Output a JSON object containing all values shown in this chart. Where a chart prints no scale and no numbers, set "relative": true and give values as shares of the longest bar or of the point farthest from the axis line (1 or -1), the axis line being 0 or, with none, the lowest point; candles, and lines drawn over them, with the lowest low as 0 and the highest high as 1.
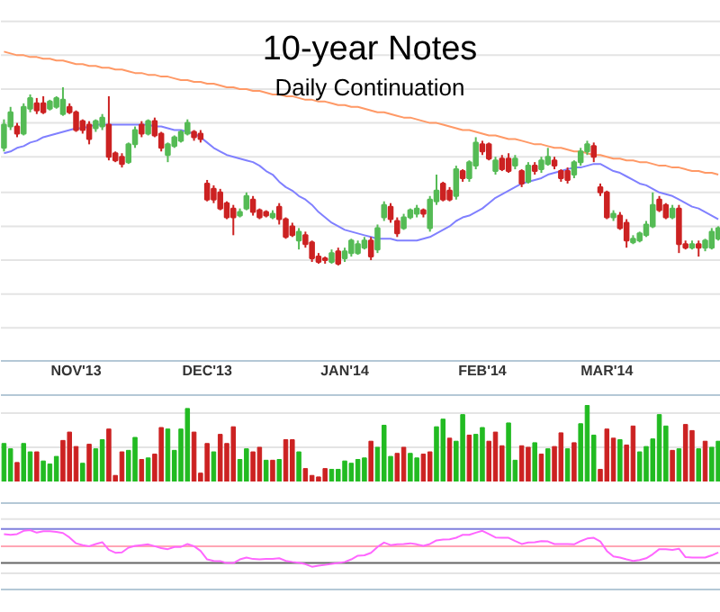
{
  "chart_data": [
    {
      "type": "candlestick",
      "title": "10-year Notes",
      "subtitle": "Daily Continuation",
      "relative": true,
      "categories": [
        null,
        null,
        null,
        null,
        null,
        null,
        null,
        null,
        null,
        null,
        null,
        "NOV'13",
        null,
        null,
        null,
        null,
        null,
        null,
        null,
        null,
        null,
        null,
        null,
        null,
        null,
        null,
        null,
        null,
        null,
        null,
        null,
        "DEC'13",
        null,
        null,
        null,
        null,
        null,
        null,
        null,
        null,
        null,
        null,
        null,
        null,
        null,
        null,
        null,
        null,
        null,
        null,
        null,
        null,
        "JAN'14",
        null,
        null,
        null,
        null,
        null,
        null,
        null,
        null,
        null,
        null,
        null,
        null,
        null,
        null,
        null,
        null,
        null,
        null,
        null,
        null,
        "FEB'14",
        null,
        null,
        null,
        null,
        null,
        null,
        null,
        null,
        null,
        null,
        null,
        null,
        null,
        null,
        null,
        null,
        null,
        null,
        "MAR'14",
        null,
        null,
        null,
        null,
        null,
        null,
        null,
        null,
        null,
        null,
        null,
        null,
        null,
        null,
        null,
        null,
        null
      ],
      "ohlc": [
        [
          0.66,
          0.82,
          0.64,
          0.79
        ],
        [
          0.78,
          0.89,
          0.76,
          0.86
        ],
        [
          0.78,
          0.8,
          0.72,
          0.74
        ],
        [
          0.74,
          0.91,
          0.73,
          0.89
        ],
        [
          0.88,
          0.96,
          0.86,
          0.94
        ],
        [
          0.91,
          0.94,
          0.85,
          0.87
        ],
        [
          0.91,
          0.95,
          0.85,
          0.86
        ],
        [
          0.88,
          0.93,
          0.87,
          0.92
        ],
        [
          0.89,
          0.95,
          0.88,
          0.94
        ],
        [
          0.85,
          1.0,
          0.84,
          0.93
        ],
        [
          0.89,
          0.91,
          0.85,
          0.86
        ],
        [
          0.86,
          0.87,
          0.75,
          0.76
        ],
        [
          0.81,
          0.82,
          0.74,
          0.76
        ],
        [
          0.79,
          0.81,
          0.68,
          0.71
        ],
        [
          0.77,
          0.82,
          0.75,
          0.81
        ],
        [
          0.78,
          0.85,
          0.76,
          0.83
        ],
        [
          0.79,
          0.95,
          0.59,
          0.61
        ],
        [
          0.63,
          0.64,
          0.58,
          0.59
        ],
        [
          0.61,
          0.63,
          0.55,
          0.57
        ],
        [
          0.58,
          0.69,
          0.57,
          0.68
        ],
        [
          0.68,
          0.78,
          0.66,
          0.76
        ],
        [
          0.79,
          0.81,
          0.72,
          0.74
        ],
        [
          0.74,
          0.82,
          0.73,
          0.81
        ],
        [
          0.81,
          0.83,
          0.72,
          0.73
        ],
        [
          0.74,
          0.75,
          0.64,
          0.66
        ],
        [
          0.62,
          0.69,
          0.58,
          0.68
        ],
        [
          0.67,
          0.73,
          0.66,
          0.72
        ],
        [
          0.7,
          0.76,
          0.69,
          0.75
        ],
        [
          0.74,
          0.82,
          0.73,
          0.8
        ],
        [
          0.75,
          0.76,
          0.7,
          0.72
        ],
        [
          0.74,
          0.76,
          0.69,
          0.71
        ],
        [
          0.46,
          0.48,
          0.36,
          0.37
        ],
        [
          0.43,
          0.45,
          0.35,
          0.37
        ],
        [
          0.41,
          0.43,
          0.31,
          0.32
        ],
        [
          0.35,
          0.36,
          0.26,
          0.27
        ],
        [
          0.32,
          0.34,
          0.17,
          0.27
        ],
        [
          0.28,
          0.32,
          0.27,
          0.3
        ],
        [
          0.32,
          0.41,
          0.31,
          0.39
        ],
        [
          0.37,
          0.39,
          0.28,
          0.3
        ],
        [
          0.31,
          0.32,
          0.26,
          0.27
        ],
        [
          0.3,
          0.31,
          0.27,
          0.28
        ],
        [
          0.27,
          0.31,
          0.26,
          0.29
        ],
        [
          0.33,
          0.35,
          0.23,
          0.26
        ],
        [
          0.26,
          0.27,
          0.15,
          0.16
        ],
        [
          0.22,
          0.24,
          0.16,
          0.17
        ],
        [
          0.14,
          0.21,
          0.09,
          0.19
        ],
        [
          0.17,
          0.19,
          0.1,
          0.12
        ],
        [
          0.13,
          0.14,
          0.02,
          0.04
        ],
        [
          0.05,
          0.07,
          0.01,
          0.02
        ],
        [
          0.04,
          0.05,
          0.01,
          0.03
        ],
        [
          0.02,
          0.09,
          0.01,
          0.07
        ],
        [
          0.08,
          0.1,
          0.0,
          0.01
        ],
        [
          0.04,
          0.1,
          0.02,
          0.08
        ],
        [
          0.07,
          0.15,
          0.05,
          0.14
        ],
        [
          0.07,
          0.14,
          0.06,
          0.12
        ],
        [
          0.1,
          0.16,
          0.09,
          0.14
        ],
        [
          0.14,
          0.16,
          0.03,
          0.05
        ],
        [
          0.09,
          0.23,
          0.07,
          0.21
        ],
        [
          0.27,
          0.36,
          0.25,
          0.34
        ],
        [
          0.33,
          0.35,
          0.24,
          0.26
        ],
        [
          0.25,
          0.27,
          0.16,
          0.18
        ],
        [
          0.21,
          0.29,
          0.2,
          0.27
        ],
        [
          0.27,
          0.32,
          0.26,
          0.31
        ],
        [
          0.29,
          0.34,
          0.27,
          0.32
        ],
        [
          0.31,
          0.32,
          0.27,
          0.29
        ],
        [
          0.21,
          0.39,
          0.19,
          0.37
        ],
        [
          0.36,
          0.51,
          0.34,
          0.42
        ],
        [
          0.46,
          0.47,
          0.36,
          0.37
        ],
        [
          0.42,
          0.44,
          0.36,
          0.37
        ],
        [
          0.39,
          0.56,
          0.37,
          0.54
        ],
        [
          0.53,
          0.54,
          0.47,
          0.49
        ],
        [
          0.49,
          0.59,
          0.47,
          0.58
        ],
        [
          0.56,
          0.72,
          0.54,
          0.69
        ],
        [
          0.68,
          0.7,
          0.62,
          0.64
        ],
        [
          0.68,
          0.69,
          0.59,
          0.6
        ],
        [
          0.53,
          0.61,
          0.51,
          0.59
        ],
        [
          0.6,
          0.62,
          0.53,
          0.54
        ],
        [
          0.6,
          0.63,
          0.52,
          0.53
        ],
        [
          0.56,
          0.62,
          0.54,
          0.6
        ],
        [
          0.53,
          0.54,
          0.44,
          0.46
        ],
        [
          0.47,
          0.58,
          0.46,
          0.56
        ],
        [
          0.56,
          0.58,
          0.51,
          0.53
        ],
        [
          0.54,
          0.61,
          0.52,
          0.59
        ],
        [
          0.57,
          0.66,
          0.56,
          0.61
        ],
        [
          0.59,
          0.61,
          0.54,
          0.56
        ],
        [
          0.53,
          0.54,
          0.47,
          0.49
        ],
        [
          0.53,
          0.55,
          0.46,
          0.48
        ],
        [
          0.51,
          0.59,
          0.49,
          0.58
        ],
        [
          0.58,
          0.66,
          0.56,
          0.64
        ],
        [
          0.64,
          0.7,
          0.62,
          0.68
        ],
        [
          0.67,
          0.69,
          0.58,
          0.61
        ],
        [
          0.44,
          0.46,
          0.39,
          0.41
        ],
        [
          0.41,
          0.42,
          0.26,
          0.27
        ],
        [
          0.27,
          0.31,
          0.25,
          0.29
        ],
        [
          0.28,
          0.3,
          0.2,
          0.21
        ],
        [
          0.24,
          0.26,
          0.1,
          0.14
        ],
        [
          0.13,
          0.17,
          0.12,
          0.15
        ],
        [
          0.14,
          0.19,
          0.13,
          0.18
        ],
        [
          0.17,
          0.25,
          0.16,
          0.23
        ],
        [
          0.22,
          0.41,
          0.21,
          0.34
        ],
        [
          0.37,
          0.39,
          0.3,
          0.31
        ],
        [
          0.34,
          0.35,
          0.26,
          0.27
        ],
        [
          0.27,
          0.34,
          0.26,
          0.32
        ],
        [
          0.32,
          0.34,
          0.07,
          0.12
        ],
        [
          0.12,
          0.14,
          0.09,
          0.1
        ],
        [
          0.1,
          0.14,
          0.09,
          0.12
        ],
        [
          0.12,
          0.14,
          0.05,
          0.1
        ],
        [
          0.1,
          0.15,
          0.08,
          0.14
        ],
        [
          0.1,
          0.21,
          0.09,
          0.19
        ],
        [
          0.15,
          0.22,
          0.14,
          0.21
        ]
      ],
      "colors": [
        "#55bb55",
        "#55bb55",
        "#cc2222",
        "#55bb55",
        "#55bb55",
        "#cc2222",
        "#cc2222",
        "#55bb55",
        "#55bb55",
        "#55bb55",
        "#cc2222",
        "#cc2222",
        "#cc2222",
        "#cc2222",
        "#55bb55",
        "#55bb55",
        "#cc2222",
        "#cc2222",
        "#cc2222",
        "#55bb55",
        "#55bb55",
        "#cc2222",
        "#55bb55",
        "#cc2222",
        "#cc2222",
        "#55bb55",
        "#55bb55",
        "#55bb55",
        "#55bb55",
        "#cc2222",
        "#cc2222",
        "#cc2222",
        "#cc2222",
        "#cc2222",
        "#cc2222",
        "#cc2222",
        "#55bb55",
        "#55bb55",
        "#cc2222",
        "#cc2222",
        "#cc2222",
        "#55bb55",
        "#cc2222",
        "#cc2222",
        "#cc2222",
        "#55bb55",
        "#cc2222",
        "#cc2222",
        "#cc2222",
        "#cc2222",
        "#55bb55",
        "#cc2222",
        "#55bb55",
        "#55bb55",
        "#55bb55",
        "#55bb55",
        "#cc2222",
        "#55bb55",
        "#55bb55",
        "#cc2222",
        "#cc2222",
        "#55bb55",
        "#55bb55",
        "#55bb55",
        "#cc2222",
        "#55bb55",
        "#55bb55",
        "#cc2222",
        "#cc2222",
        "#55bb55",
        "#cc2222",
        "#55bb55",
        "#55bb55",
        "#cc2222",
        "#cc2222",
        "#55bb55",
        "#cc2222",
        "#cc2222",
        "#55bb55",
        "#cc2222",
        "#55bb55",
        "#cc2222",
        "#55bb55",
        "#55bb55",
        "#cc2222",
        "#cc2222",
        "#cc2222",
        "#55bb55",
        "#55bb55",
        "#55bb55",
        "#cc2222",
        "#cc2222",
        "#cc2222",
        "#55bb55",
        "#cc2222",
        "#cc2222",
        "#55bb55",
        "#55bb55",
        "#55bb55",
        "#55bb55",
        "#cc2222",
        "#cc2222",
        "#55bb55",
        "#cc2222",
        "#cc2222",
        "#55bb55",
        "#cc2222",
        "#55bb55",
        "#55bb55",
        "#55bb55"
      ],
      "series": [
        {
          "type": "line",
          "color": "#ff9966",
          "values": [
            1.2,
            1.19,
            1.18,
            1.18,
            1.17,
            1.17,
            1.16,
            1.16,
            1.15,
            1.15,
            1.14,
            1.13,
            1.13,
            1.12,
            1.12,
            1.11,
            1.11,
            1.1,
            1.1,
            1.09,
            1.08,
            1.08,
            1.07,
            1.07,
            1.06,
            1.06,
            1.05,
            1.04,
            1.04,
            1.03,
            1.03,
            1.02,
            1.02,
            1.01,
            1.0,
            1.0,
            0.99,
            0.99,
            0.98,
            0.98,
            0.97,
            0.96,
            0.96,
            0.95,
            0.95,
            0.94,
            0.93,
            0.93,
            0.92,
            0.92,
            0.91,
            0.9,
            0.9,
            0.89,
            0.89,
            0.88,
            0.87,
            0.86,
            0.86,
            0.85,
            0.84,
            0.83,
            0.83,
            0.82,
            0.81,
            0.8,
            0.8,
            0.79,
            0.78,
            0.77,
            0.76,
            0.76,
            0.75,
            0.74,
            0.73,
            0.73,
            0.72,
            0.71,
            0.71,
            0.7,
            0.69,
            0.68,
            0.68,
            0.67,
            0.66,
            0.66,
            0.65,
            0.64,
            0.64,
            0.63,
            0.62,
            0.62,
            0.61,
            0.6,
            0.6,
            0.59,
            0.59,
            0.58,
            0.58,
            0.57,
            0.56,
            0.56,
            0.55,
            0.55,
            0.54,
            0.53,
            0.53,
            0.52,
            0.52,
            0.51
          ]
        },
        {
          "type": "line",
          "color": "#8080ff",
          "values": [
            0.63,
            0.64,
            0.66,
            0.67,
            0.69,
            0.7,
            0.72,
            0.73,
            0.74,
            0.75,
            0.76,
            0.77,
            0.77,
            0.78,
            0.79,
            0.79,
            0.79,
            0.79,
            0.79,
            0.79,
            0.79,
            0.79,
            0.79,
            0.78,
            0.78,
            0.77,
            0.76,
            0.76,
            0.75,
            0.74,
            0.72,
            0.69,
            0.66,
            0.64,
            0.62,
            0.61,
            0.6,
            0.59,
            0.58,
            0.56,
            0.53,
            0.51,
            0.47,
            0.44,
            0.42,
            0.39,
            0.37,
            0.34,
            0.3,
            0.27,
            0.24,
            0.22,
            0.2,
            0.19,
            0.18,
            0.17,
            0.16,
            0.15,
            0.15,
            0.15,
            0.14,
            0.14,
            0.14,
            0.14,
            0.15,
            0.16,
            0.18,
            0.2,
            0.22,
            0.25,
            0.27,
            0.28,
            0.3,
            0.32,
            0.35,
            0.38,
            0.4,
            0.42,
            0.44,
            0.46,
            0.47,
            0.48,
            0.49,
            0.51,
            0.52,
            0.53,
            0.54,
            0.55,
            0.55,
            0.56,
            0.57,
            0.57,
            0.55,
            0.53,
            0.52,
            0.5,
            0.48,
            0.46,
            0.45,
            0.43,
            0.41,
            0.4,
            0.39,
            0.37,
            0.35,
            0.33,
            0.32,
            0.3,
            0.28,
            0.26
          ]
        }
      ],
      "ref_lines": [
        {
          "axis": "y",
          "value": -0.35,
          "color": "#e4e4e4"
        },
        {
          "axis": "y",
          "value": -0.16,
          "color": "#e4e4e4"
        },
        {
          "axis": "y",
          "value": 0.03,
          "color": "#e4e4e4"
        },
        {
          "axis": "y",
          "value": 0.22,
          "color": "#e4e4e4"
        },
        {
          "axis": "y",
          "value": 0.41,
          "color": "#e4e4e4"
        },
        {
          "axis": "y",
          "value": 0.61,
          "color": "#e4e4e4"
        },
        {
          "axis": "y",
          "value": 0.8,
          "color": "#e4e4e4"
        },
        {
          "axis": "y",
          "value": 0.99,
          "color": "#e4e4e4"
        },
        {
          "axis": "y",
          "value": 1.18,
          "color": "#e4e4e4"
        },
        {
          "axis": "y",
          "value": 1.37,
          "color": "#e4e4e4"
        }
      ]
    },
    {
      "type": "bar",
      "relative": true,
      "categories": [
        null,
        null,
        null,
        null,
        null,
        null,
        null,
        null,
        null,
        null,
        null,
        null,
        null,
        null,
        null,
        null,
        null,
        null,
        null,
        null,
        null,
        null,
        null,
        null,
        null,
        null,
        null,
        null,
        null,
        null,
        null,
        null,
        null,
        null,
        null,
        null,
        null,
        null,
        null,
        null,
        null,
        null,
        null,
        null,
        null,
        null,
        null,
        null,
        null,
        null,
        null,
        null,
        null,
        null,
        null,
        null,
        null,
        null,
        null,
        null,
        null,
        null,
        null,
        null,
        null,
        null,
        null,
        null,
        null,
        null,
        null,
        null,
        null,
        null,
        null,
        null,
        null,
        null,
        null,
        null,
        null,
        null,
        null,
        null,
        null,
        null,
        null,
        null,
        null,
        null,
        null,
        null,
        null,
        null,
        null,
        null,
        null,
        null,
        null,
        null,
        null,
        null,
        null,
        null,
        null,
        null,
        null,
        null,
        null,
        null
      ],
      "values": [
        0.5,
        0.43,
        0.25,
        0.5,
        0.39,
        0.39,
        0.27,
        0.23,
        0.33,
        0.54,
        0.65,
        0.46,
        0.24,
        0.49,
        0.43,
        0.55,
        0.69,
        0.08,
        0.39,
        0.41,
        0.58,
        0.29,
        0.31,
        0.36,
        0.71,
        0.69,
        0.41,
        0.69,
        0.96,
        0.65,
        0.11,
        0.5,
        0.39,
        0.62,
        0.5,
        0.72,
        0.29,
        0.43,
        0.39,
        0.45,
        0.28,
        0.28,
        0.29,
        0.55,
        0.55,
        0.39,
        0.17,
        0.08,
        0.06,
        0.17,
        0.16,
        0.16,
        0.27,
        0.24,
        0.29,
        0.31,
        0.53,
        0.45,
        0.74,
        0.33,
        0.37,
        0.45,
        0.37,
        0.31,
        0.36,
        0.39,
        0.72,
        0.82,
        0.57,
        0.53,
        0.88,
        0.61,
        0.62,
        0.71,
        0.53,
        0.65,
        0.47,
        0.77,
        0.28,
        0.47,
        0.45,
        0.51,
        0.36,
        0.43,
        0.46,
        0.64,
        0.43,
        0.51,
        0.76,
        1.0,
        0.61,
        0.16,
        0.69,
        0.57,
        0.55,
        0.48,
        0.73,
        0.39,
        0.46,
        0.56,
        0.88,
        0.73,
        0.41,
        0.43,
        0.75,
        0.67,
        0.43,
        0.53,
        0.45,
        0.53
      ],
      "colors": [
        "#22bb22",
        "#22bb22",
        "#cc2222",
        "#22bb22",
        "#22bb22",
        "#cc2222",
        "#22bb22",
        "#22bb22",
        "#22bb22",
        "#cc2222",
        "#cc2222",
        "#cc2222",
        "#22bb22",
        "#cc2222",
        "#22bb22",
        "#22bb22",
        "#cc2222",
        "#cc2222",
        "#cc2222",
        "#22bb22",
        "#22bb22",
        "#cc2222",
        "#22bb22",
        "#cc2222",
        "#cc2222",
        "#22bb22",
        "#22bb22",
        "#22bb22",
        "#22bb22",
        "#cc2222",
        "#cc2222",
        "#cc2222",
        "#22bb22",
        "#cc2222",
        "#cc2222",
        "#cc2222",
        "#22bb22",
        "#22bb22",
        "#cc2222",
        "#cc2222",
        "#22bb22",
        "#cc2222",
        "#22bb22",
        "#cc2222",
        "#cc2222",
        "#22bb22",
        "#cc2222",
        "#cc2222",
        "#cc2222",
        "#cc2222",
        "#22bb22",
        "#22bb22",
        "#22bb22",
        "#22bb22",
        "#22bb22",
        "#22bb22",
        "#cc2222",
        "#22bb22",
        "#22bb22",
        "#22bb22",
        "#cc2222",
        "#cc2222",
        "#22bb22",
        "#22bb22",
        "#cc2222",
        "#cc2222",
        "#22bb22",
        "#22bb22",
        "#cc2222",
        "#22bb22",
        "#22bb22",
        "#cc2222",
        "#22bb22",
        "#22bb22",
        "#cc2222",
        "#cc2222",
        "#cc2222",
        "#22bb22",
        "#22bb22",
        "#cc2222",
        "#cc2222",
        "#22bb22",
        "#cc2222",
        "#22bb22",
        "#cc2222",
        "#cc2222",
        "#22bb22",
        "#cc2222",
        "#22bb22",
        "#22bb22",
        "#22bb22",
        "#cc2222",
        "#cc2222",
        "#cc2222",
        "#22bb22",
        "#cc2222",
        "#cc2222",
        "#22bb22",
        "#22bb22",
        "#22bb22",
        "#22bb22",
        "#22bb22",
        "#cc2222",
        "#22bb22",
        "#cc2222",
        "#cc2222",
        "#22bb22",
        "#cc2222",
        "#22bb22",
        "#22bb22"
      ],
      "ref_lines": [
        {
          "axis": "y",
          "value": 0.45,
          "color": "#e4e4e4"
        },
        {
          "axis": "y",
          "value": 0.9,
          "color": "#e4e4e4"
        }
      ]
    },
    {
      "type": "line",
      "relative": true,
      "color": "#ff66ff",
      "categories": [
        null,
        null,
        null,
        null,
        null,
        null,
        null,
        null,
        null,
        null,
        null,
        null,
        null,
        null,
        null,
        null,
        null,
        null,
        null,
        null,
        null,
        null,
        null,
        null,
        null,
        null,
        null,
        null,
        null,
        null,
        null,
        null,
        null,
        null,
        null,
        null,
        null,
        null,
        null,
        null,
        null,
        null,
        null,
        null,
        null,
        null,
        null,
        null,
        null,
        null,
        null,
        null,
        null,
        null,
        null,
        null,
        null,
        null,
        null,
        null,
        null,
        null,
        null,
        null,
        null,
        null,
        null,
        null,
        null,
        null,
        null,
        null,
        null,
        null,
        null,
        null,
        null,
        null,
        null,
        null,
        null,
        null,
        null,
        null,
        null,
        null,
        null,
        null,
        null,
        null,
        null,
        null,
        null,
        null,
        null,
        null,
        null,
        null,
        null,
        null,
        null,
        null,
        null,
        null,
        null,
        null,
        null,
        null,
        null,
        null
      ],
      "values": [
        0.89,
        0.87,
        0.89,
        0.98,
        1.0,
        0.93,
        0.97,
        0.97,
        0.95,
        0.92,
        0.8,
        0.64,
        0.59,
        0.56,
        0.62,
        0.67,
        0.46,
        0.38,
        0.39,
        0.52,
        0.57,
        0.59,
        0.61,
        0.56,
        0.51,
        0.48,
        0.54,
        0.54,
        0.62,
        0.56,
        0.43,
        0.2,
        0.16,
        0.15,
        0.1,
        0.1,
        0.2,
        0.25,
        0.21,
        0.2,
        0.21,
        0.21,
        0.23,
        0.16,
        0.13,
        0.11,
        0.07,
        0.0,
        0.03,
        0.05,
        0.08,
        0.1,
        0.13,
        0.2,
        0.3,
        0.31,
        0.38,
        0.54,
        0.66,
        0.59,
        0.61,
        0.62,
        0.64,
        0.61,
        0.57,
        0.62,
        0.72,
        0.74,
        0.75,
        0.79,
        0.87,
        0.87,
        0.93,
        0.98,
        0.89,
        0.8,
        0.79,
        0.79,
        0.7,
        0.62,
        0.66,
        0.67,
        0.7,
        0.69,
        0.62,
        0.62,
        0.62,
        0.61,
        0.7,
        0.77,
        0.79,
        0.69,
        0.43,
        0.28,
        0.25,
        0.2,
        0.16,
        0.18,
        0.23,
        0.34,
        0.48,
        0.48,
        0.46,
        0.49,
        0.26,
        0.25,
        0.25,
        0.25,
        0.31,
        0.39
      ],
      "ref_lines": [
        {
          "axis": "y",
          "value": -0.18,
          "color": "#e4e4e4"
        },
        {
          "axis": "y",
          "value": 1.3,
          "color": "#e4e4e4"
        },
        {
          "axis": "y",
          "value": 1.03,
          "color": "#8080dd"
        },
        {
          "axis": "y",
          "value": 0.56,
          "color": "#ffa6b4"
        },
        {
          "axis": "y",
          "value": 0.1,
          "color": "#666666"
        }
      ]
    }
  ]
}
